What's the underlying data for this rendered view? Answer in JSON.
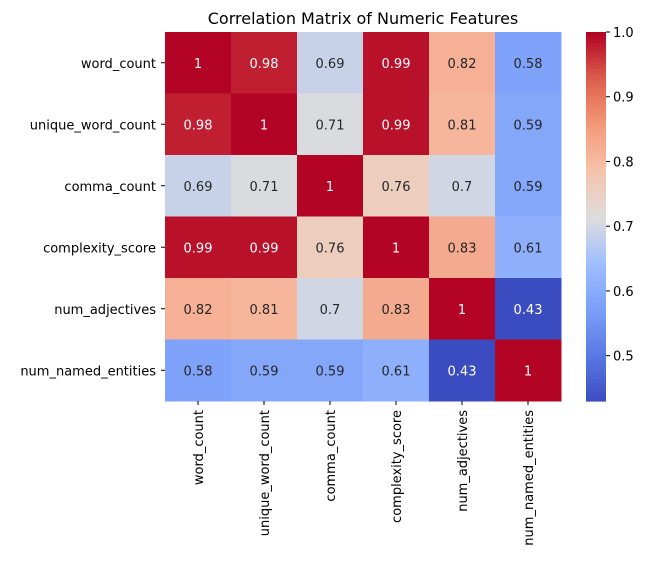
{
  "chart_data": {
    "type": "heatmap",
    "title": "Correlation Matrix of Numeric Features",
    "labels": [
      "word_count",
      "unique_word_count",
      "comma_count",
      "complexity_score",
      "num_adjectives",
      "num_named_entities"
    ],
    "values": [
      [
        1,
        0.98,
        0.69,
        0.99,
        0.82,
        0.58
      ],
      [
        0.98,
        1,
        0.71,
        0.99,
        0.81,
        0.59
      ],
      [
        0.69,
        0.71,
        1,
        0.76,
        0.7,
        0.59
      ],
      [
        0.99,
        0.99,
        0.76,
        1,
        0.83,
        0.61
      ],
      [
        0.82,
        0.81,
        0.7,
        0.83,
        1,
        0.43
      ],
      [
        0.58,
        0.59,
        0.59,
        0.61,
        0.43,
        1
      ]
    ],
    "annotations": [
      [
        "1",
        "0.98",
        "0.69",
        "0.99",
        "0.82",
        "0.58"
      ],
      [
        "0.98",
        "1",
        "0.71",
        "0.99",
        "0.81",
        "0.59"
      ],
      [
        "0.69",
        "0.71",
        "1",
        "0.76",
        "0.7",
        "0.59"
      ],
      [
        "0.99",
        "0.99",
        "0.76",
        "1",
        "0.83",
        "0.61"
      ],
      [
        "0.82",
        "0.81",
        "0.7",
        "0.83",
        "1",
        "0.43"
      ],
      [
        "0.58",
        "0.59",
        "0.59",
        "0.61",
        "0.43",
        "1"
      ]
    ],
    "colormap": "coolwarm",
    "vmin": 0.43,
    "vmax": 1.0,
    "colorbar_ticks": [
      "0.5",
      "0.6",
      "0.7",
      "0.8",
      "0.9",
      "1.0"
    ]
  }
}
